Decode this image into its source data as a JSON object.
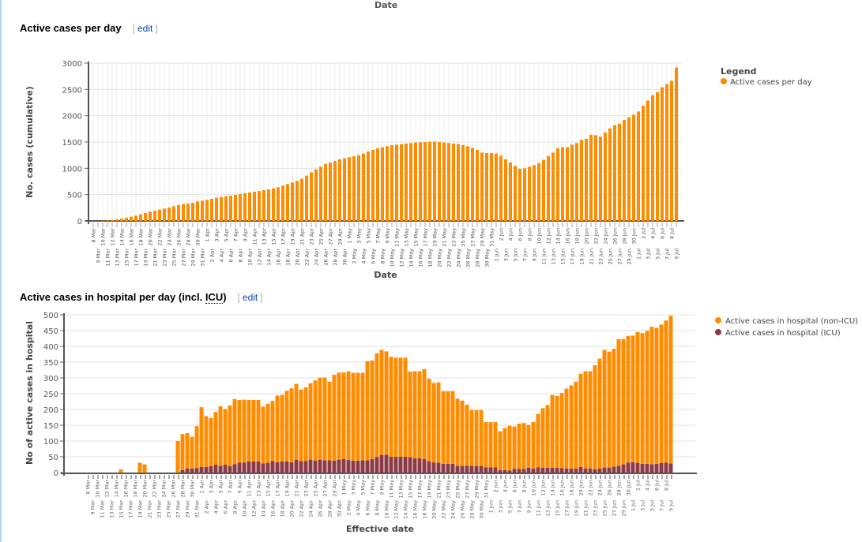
{
  "page": {
    "top_cut_label": "Date"
  },
  "charts_meta": [
    {
      "title": "Active cases per day",
      "edit_label": "edit"
    },
    {
      "title_prefix": "Active cases in hospital per day (incl. ",
      "title_abbr": "ICU",
      "title_suffix": ")",
      "edit_label": "edit"
    }
  ],
  "chart_data": [
    {
      "type": "bar",
      "title": "Active cases per day",
      "xlabel": "Date",
      "ylabel": "No. cases (cumulative)",
      "ylim": [
        0,
        3000
      ],
      "yticks": [
        0,
        500,
        1000,
        1500,
        2000,
        2500,
        3000
      ],
      "grid": true,
      "legend_title": "Legend",
      "legend_position": "right",
      "data_labels": true,
      "categories": [
        "8 Mar",
        "9 Mar",
        "10 Mar",
        "11 Mar",
        "12 Mar",
        "13 Mar",
        "14 Mar",
        "15 Mar",
        "16 Mar",
        "17 Mar",
        "18 Mar",
        "19 Mar",
        "20 Mar",
        "21 Mar",
        "22 Mar",
        "23 Mar",
        "24 Mar",
        "25 Mar",
        "26 Mar",
        "27 Mar",
        "28 Mar",
        "29 Mar",
        "30 Mar",
        "31 Mar",
        "1 Apr",
        "2 Apr",
        "3 Apr",
        "4 Apr",
        "5 Apr",
        "6 Apr",
        "7 Apr",
        "8 Apr",
        "9 Apr",
        "10 Apr",
        "11 Apr",
        "12 Apr",
        "13 Apr",
        "14 Apr",
        "15 Apr",
        "16 Apr",
        "17 Apr",
        "18 Apr",
        "19 Apr",
        "20 Apr",
        "21 Apr",
        "22 Apr",
        "23 Apr",
        "24 Apr",
        "25 Apr",
        "26 Apr",
        "27 Apr",
        "28 Apr",
        "29 Apr",
        "30 Apr",
        "1 May",
        "2 May",
        "3 May",
        "4 May",
        "5 May",
        "6 May",
        "7 May",
        "8 May",
        "9 May",
        "10 May",
        "11 May",
        "12 May",
        "13 May",
        "14 May",
        "15 May",
        "16 May",
        "17 May",
        "18 May",
        "19 May",
        "20 May",
        "21 May",
        "22 May",
        "23 May",
        "24 May",
        "25 May",
        "26 May",
        "27 May",
        "28 May",
        "29 May",
        "30 May",
        "31 May",
        "1 Jun",
        "2 Jun",
        "3 Jun",
        "4 Jun",
        "5 Jun",
        "6 Jun",
        "7 Jun",
        "8 Jun",
        "9 Jun",
        "10 Jun",
        "11 Jun",
        "12 Jun",
        "13 Jun",
        "14 Jun",
        "15 Jun",
        "16 Jun",
        "17 Jun",
        "18 Jun",
        "19 Jun",
        "20 Jun",
        "21 Jun",
        "22 Jun",
        "23 Jun",
        "24 Jun",
        "25 Jun",
        "26 Jun",
        "27 Jun",
        "28 Jun",
        "29 Jun",
        "30 Jun",
        "1 Jul",
        "2 Jul",
        "3 Jul",
        "4 Jul",
        "5 Jul",
        "6 Jul",
        "7 Jul",
        "8 Jul",
        "9 Jul"
      ],
      "series": [
        {
          "name": "Active cases per day",
          "color": "#ff8c00",
          "values": [
            1,
            1,
            5,
            10,
            20,
            30,
            45,
            60,
            80,
            100,
            125,
            150,
            175,
            195,
            215,
            235,
            255,
            280,
            300,
            320,
            330,
            345,
            370,
            385,
            400,
            420,
            440,
            455,
            470,
            480,
            495,
            510,
            525,
            540,
            555,
            570,
            585,
            600,
            620,
            640,
            670,
            700,
            730,
            760,
            800,
            860,
            920,
            980,
            1030,
            1080,
            1110,
            1140,
            1170,
            1190,
            1210,
            1230,
            1250,
            1280,
            1320,
            1350,
            1380,
            1400,
            1420,
            1440,
            1450,
            1460,
            1470,
            1480,
            1490,
            1495,
            1500,
            1505,
            1510,
            1500,
            1490,
            1480,
            1470,
            1460,
            1440,
            1420,
            1390,
            1350,
            1300,
            1290,
            1290,
            1280,
            1240,
            1170,
            1110,
            1050,
            990,
            1000,
            1030,
            1060,
            1100,
            1160,
            1230,
            1300,
            1380,
            1400,
            1400,
            1450,
            1480,
            1540,
            1560,
            1640,
            1630,
            1600,
            1680,
            1760,
            1820,
            1850,
            1920,
            1970,
            2020,
            2080,
            2190,
            2290,
            2390,
            2450,
            2540,
            2600,
            2664,
            2917
          ]
        }
      ]
    },
    {
      "type": "bar",
      "stacked": true,
      "title": "Active cases in hospital per day (incl. ICU)",
      "xlabel": "Effective date",
      "ylabel": "No of active cases in hospital",
      "ylim": [
        0,
        500
      ],
      "yticks": [
        0,
        50,
        100,
        150,
        200,
        250,
        300,
        350,
        400,
        450,
        500
      ],
      "grid": true,
      "legend_position": "right",
      "categories_ref": "same as first chart",
      "series": [
        {
          "name": "Active cases in hospital (non-ICU)",
          "color": "#ff8c00",
          "values": [
            0,
            0,
            0,
            0,
            0,
            0,
            0,
            10,
            0,
            0,
            0,
            31,
            26,
            0,
            0,
            0,
            0,
            0,
            0,
            100,
            114,
            112,
            100,
            133,
            189,
            161,
            153,
            167,
            188,
            176,
            193,
            206,
            198,
            199,
            195,
            195,
            195,
            180,
            187,
            190,
            211,
            211,
            224,
            234,
            241,
            226,
            233,
            242,
            254,
            260,
            262,
            249,
            272,
            276,
            274,
            281,
            278,
            278,
            277,
            314,
            312,
            329,
            333,
            327,
            317,
            314,
            314,
            314,
            271,
            276,
            276,
            285,
            262,
            252,
            255,
            230,
            230,
            230,
            213,
            207,
            193,
            177,
            177,
            177,
            143,
            143,
            143,
            123,
            133,
            141,
            134,
            143,
            145,
            136,
            147,
            169,
            189,
            199,
            231,
            228,
            238,
            253,
            263,
            275,
            295,
            308,
            308,
            329,
            348,
            373,
            367,
            373,
            402,
            397,
            401,
            401,
            414,
            414,
            421,
            435,
            430,
            439,
            450,
            468
          ]
        },
        {
          "name": "Active cases in hospital (ICU)",
          "color": "#8b3a46",
          "values": [
            0,
            0,
            0,
            0,
            0,
            0,
            0,
            0,
            0,
            0,
            0,
            0,
            0,
            0,
            0,
            0,
            0,
            0,
            0,
            0,
            8,
            13,
            13,
            14,
            18,
            18,
            20,
            25,
            22,
            25,
            20,
            27,
            32,
            32,
            35,
            35,
            35,
            29,
            31,
            37,
            33,
            35,
            35,
            33,
            40,
            37,
            37,
            41,
            38,
            41,
            39,
            39,
            38,
            41,
            43,
            40,
            38,
            38,
            39,
            39,
            43,
            49,
            56,
            57,
            50,
            50,
            50,
            50,
            49,
            45,
            45,
            43,
            36,
            32,
            31,
            28,
            28,
            28,
            21,
            21,
            22,
            21,
            21,
            21,
            17,
            17,
            17,
            8,
            8,
            7,
            12,
            12,
            12,
            15,
            13,
            17,
            15,
            15,
            15,
            15,
            14,
            13,
            13,
            13,
            18,
            13,
            13,
            11,
            13,
            16,
            16,
            19,
            21,
            26,
            32,
            33,
            31,
            28,
            28,
            27,
            28,
            30,
            32,
            29
          ]
        }
      ]
    }
  ]
}
